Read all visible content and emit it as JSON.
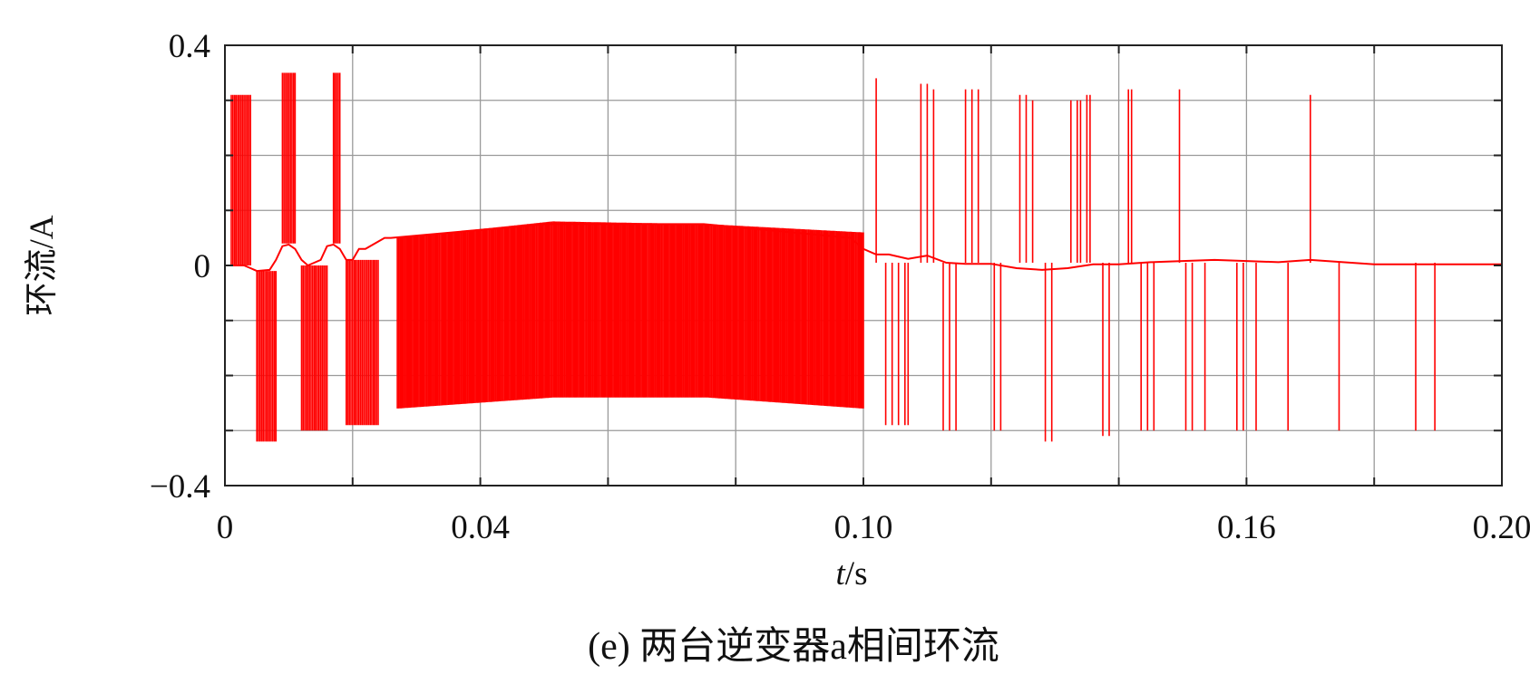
{
  "chart_data": {
    "type": "line",
    "xlabel_italic": "t",
    "xlabel_unit": "/s",
    "ylabel": "环流/A",
    "caption": "(e) 两台逆变器a相间环流",
    "xlim": [
      0,
      0.2
    ],
    "ylim": [
      -0.4,
      0.4
    ],
    "x_ticklabels": [
      {
        "value": 0,
        "label": "0"
      },
      {
        "value": 0.04,
        "label": "0.04"
      },
      {
        "value": 0.1,
        "label": "0.10"
      },
      {
        "value": 0.16,
        "label": "0.16"
      },
      {
        "value": 0.2,
        "label": "0.20"
      }
    ],
    "y_ticklabels": [
      {
        "value": 0.4,
        "label": "0.4"
      },
      {
        "value": 0,
        "label": "0"
      },
      {
        "value": -0.4,
        "label": "−0.4"
      }
    ],
    "x_gridlines": [
      0.02,
      0.04,
      0.06,
      0.08,
      0.1,
      0.12,
      0.14,
      0.16,
      0.18
    ],
    "y_gridlines": [
      0.3,
      0.2,
      0.1,
      -0.1,
      -0.2,
      -0.3
    ],
    "grid": true,
    "line_color": "#ff0000",
    "series": [
      {
        "baseline": {
          "x": [
            0,
            0.003,
            0.004,
            0.005,
            0.007,
            0.008,
            0.009,
            0.01,
            0.011,
            0.012,
            0.013,
            0.015,
            0.016,
            0.017,
            0.018,
            0.019,
            0.02,
            0.021,
            0.022,
            0.025,
            0.026,
            0.05,
            0.075,
            0.098,
            0.1,
            0.102,
            0.104,
            0.107,
            0.11,
            0.113,
            0.116,
            0.12,
            0.124,
            0.128,
            0.132,
            0.136,
            0.14,
            0.145,
            0.15,
            0.155,
            0.16,
            0.165,
            0.17,
            0.18,
            0.19,
            0.2
          ],
          "y": [
            0,
            0,
            -0.005,
            -0.01,
            -0.008,
            0.01,
            0.035,
            0.038,
            0.03,
            0.01,
            0,
            0.01,
            0.035,
            0.038,
            0.03,
            0.01,
            0.01,
            0.03,
            0.03,
            0.05,
            0.05,
            0.075,
            0.075,
            0.05,
            0.03,
            0.02,
            0.02,
            0.012,
            0.018,
            0.005,
            0.003,
            0.003,
            -0.005,
            -0.008,
            -0.005,
            0.002,
            0.002,
            0.006,
            0.008,
            0.01,
            0.008,
            0.006,
            0.01,
            0.002,
            0.002,
            0.002
          ]
        },
        "dense_blocks": [
          {
            "x": [
              0.001,
              0.004
            ],
            "y": [
              0.0,
              0.31
            ],
            "spacing": 0.00025
          },
          {
            "x": [
              0.009,
              0.011
            ],
            "y": [
              0.04,
              0.35
            ],
            "spacing": 0.00025
          },
          {
            "x": [
              0.017,
              0.018
            ],
            "y": [
              0.04,
              0.35
            ],
            "spacing": 0.00025
          },
          {
            "x": [
              0.005,
              0.008
            ],
            "y": [
              -0.32,
              -0.01
            ],
            "spacing": 0.00025
          },
          {
            "x": [
              0.012,
              0.016
            ],
            "y": [
              -0.3,
              0.0
            ],
            "spacing": 0.00025
          },
          {
            "x": [
              0.019,
              0.024
            ],
            "y": [
              -0.29,
              0.01
            ],
            "spacing": 0.00025
          },
          {
            "x": [
              0.027,
              0.1
            ],
            "y_top": [
              0.05,
              0.08,
              0.075,
              0.06
            ],
            "y_bottom": [
              -0.26,
              -0.24,
              -0.24,
              -0.26
            ],
            "spacing": 0.0002
          }
        ],
        "spikes": [
          {
            "x": 0.102,
            "y": 0.34
          },
          {
            "x": 0.109,
            "y": 0.33
          },
          {
            "x": 0.11,
            "y": 0.33
          },
          {
            "x": 0.111,
            "y": 0.32
          },
          {
            "x": 0.116,
            "y": 0.32
          },
          {
            "x": 0.117,
            "y": 0.32
          },
          {
            "x": 0.118,
            "y": 0.32
          },
          {
            "x": 0.1245,
            "y": 0.31
          },
          {
            "x": 0.1255,
            "y": 0.31
          },
          {
            "x": 0.1265,
            "y": 0.3
          },
          {
            "x": 0.1325,
            "y": 0.3
          },
          {
            "x": 0.1335,
            "y": 0.3
          },
          {
            "x": 0.134,
            "y": 0.3
          },
          {
            "x": 0.135,
            "y": 0.31
          },
          {
            "x": 0.1355,
            "y": 0.31
          },
          {
            "x": 0.1415,
            "y": 0.32
          },
          {
            "x": 0.142,
            "y": 0.32
          },
          {
            "x": 0.1495,
            "y": 0.32
          },
          {
            "x": 0.17,
            "y": 0.31
          },
          {
            "x": 0.1035,
            "y": -0.29
          },
          {
            "x": 0.1045,
            "y": -0.29
          },
          {
            "x": 0.1055,
            "y": -0.29
          },
          {
            "x": 0.1065,
            "y": -0.29
          },
          {
            "x": 0.107,
            "y": -0.29
          },
          {
            "x": 0.1125,
            "y": -0.3
          },
          {
            "x": 0.1135,
            "y": -0.3
          },
          {
            "x": 0.1145,
            "y": -0.3
          },
          {
            "x": 0.1205,
            "y": -0.3
          },
          {
            "x": 0.1215,
            "y": -0.3
          },
          {
            "x": 0.1285,
            "y": -0.32
          },
          {
            "x": 0.1295,
            "y": -0.32
          },
          {
            "x": 0.1375,
            "y": -0.31
          },
          {
            "x": 0.1385,
            "y": -0.31
          },
          {
            "x": 0.1435,
            "y": -0.3
          },
          {
            "x": 0.1445,
            "y": -0.3
          },
          {
            "x": 0.1455,
            "y": -0.3
          },
          {
            "x": 0.1505,
            "y": -0.3
          },
          {
            "x": 0.1515,
            "y": -0.3
          },
          {
            "x": 0.1535,
            "y": -0.3
          },
          {
            "x": 0.1585,
            "y": -0.3
          },
          {
            "x": 0.1595,
            "y": -0.3
          },
          {
            "x": 0.1615,
            "y": -0.3
          },
          {
            "x": 0.1665,
            "y": -0.3
          },
          {
            "x": 0.1745,
            "y": -0.3
          },
          {
            "x": 0.1865,
            "y": -0.3
          },
          {
            "x": 0.1895,
            "y": -0.3
          }
        ]
      }
    ]
  }
}
